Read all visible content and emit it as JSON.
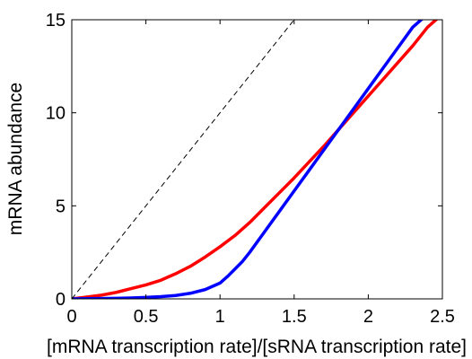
{
  "chart_data": {
    "type": "line",
    "xlabel": "[mRNA transcription rate]/[sRNA transcription rate]",
    "ylabel": "mRNA abundance",
    "xlim": [
      0,
      2.5
    ],
    "ylim": [
      0,
      15
    ],
    "xticks": [
      {
        "value": 0,
        "label": "0"
      },
      {
        "value": 0.5,
        "label": "0.5"
      },
      {
        "value": 1,
        "label": "1"
      },
      {
        "value": 1.5,
        "label": "1.5"
      },
      {
        "value": 2,
        "label": "2"
      },
      {
        "value": 2.5,
        "label": "2.5"
      }
    ],
    "yticks": [
      {
        "value": 0,
        "label": "0"
      },
      {
        "value": 5,
        "label": "5"
      },
      {
        "value": 10,
        "label": "10"
      },
      {
        "value": 15,
        "label": "15"
      }
    ],
    "grid": false,
    "legend": false,
    "series": [
      {
        "color": "#ff0000",
        "style": "solid",
        "x": [
          0,
          0.1,
          0.2,
          0.3,
          0.4,
          0.5,
          0.6,
          0.7,
          0.8,
          0.9,
          1.0,
          1.1,
          1.2,
          1.3,
          1.4,
          1.5,
          1.6,
          1.7,
          1.8,
          1.9,
          2.0,
          2.1,
          2.2,
          2.3,
          2.4,
          2.5
        ],
        "values": [
          0,
          0.1,
          0.2,
          0.35,
          0.55,
          0.75,
          1.0,
          1.35,
          1.75,
          2.25,
          2.8,
          3.4,
          4.1,
          4.9,
          5.7,
          6.5,
          7.35,
          8.2,
          9.1,
          10.0,
          10.9,
          11.8,
          12.7,
          13.6,
          14.6,
          15.3
        ]
      },
      {
        "color": "#0000ff",
        "style": "solid",
        "x": [
          0,
          0.1,
          0.2,
          0.3,
          0.4,
          0.5,
          0.6,
          0.7,
          0.8,
          0.9,
          1.0,
          1.05,
          1.1,
          1.15,
          1.2,
          1.3,
          1.4,
          1.5,
          1.6,
          1.7,
          1.8,
          1.9,
          2.0,
          2.1,
          2.2,
          2.3,
          2.4,
          2.5
        ],
        "values": [
          0,
          0.01,
          0.02,
          0.03,
          0.05,
          0.08,
          0.12,
          0.18,
          0.3,
          0.5,
          0.85,
          1.2,
          1.6,
          2.0,
          2.5,
          3.6,
          4.7,
          5.8,
          6.9,
          8.0,
          9.1,
          10.2,
          11.3,
          12.4,
          13.5,
          14.6,
          15.3,
          16.0
        ]
      },
      {
        "color": "#000000",
        "style": "dashed",
        "x": [
          0,
          1.5
        ],
        "values": [
          0,
          15
        ]
      }
    ]
  }
}
